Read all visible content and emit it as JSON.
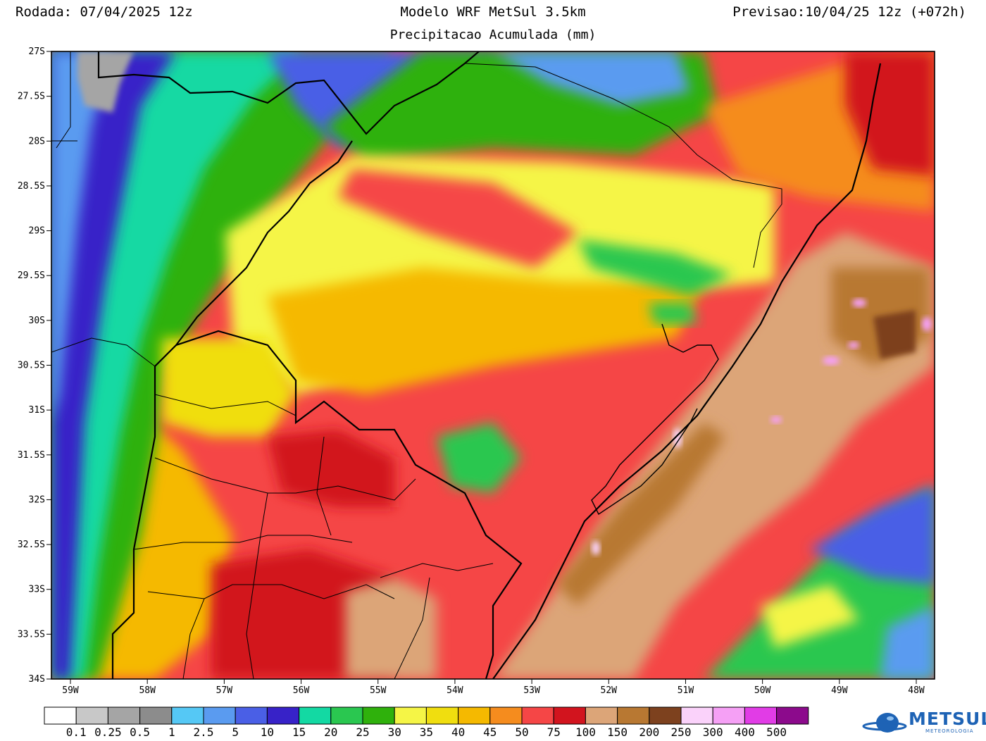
{
  "header": {
    "run": "Rodada: 07/04/2025 12z",
    "model": "Modelo WRF MetSul 3.5km",
    "forecast": "Previsao:10/04/25 12z (+072h)",
    "subtitle": "Precipitacao Acumulada (mm)"
  },
  "axes": {
    "lat_labels": [
      "27S",
      "27.5S",
      "28S",
      "28.5S",
      "29S",
      "29.5S",
      "30S",
      "30.5S",
      "31S",
      "31.5S",
      "32S",
      "32.5S",
      "33S",
      "33.5S",
      "34S"
    ],
    "lon_labels": [
      "59W",
      "58W",
      "57W",
      "56W",
      "55W",
      "54W",
      "53W",
      "52W",
      "51W",
      "50W",
      "49W",
      "48W"
    ]
  },
  "colorbar": {
    "labels": [
      "0.1",
      "0.25",
      "0.5",
      "1",
      "2.5",
      "5",
      "10",
      "15",
      "20",
      "25",
      "30",
      "35",
      "40",
      "45",
      "50",
      "75",
      "100",
      "150",
      "200",
      "250",
      "300",
      "400",
      "500"
    ],
    "colors": [
      "#ffffff",
      "#c8c8c8",
      "#a5a5a5",
      "#8c8c8c",
      "#55c8f5",
      "#5a9bf0",
      "#4a5fe6",
      "#3722c8",
      "#13d9a3",
      "#2ac750",
      "#2fb10c",
      "#f5f546",
      "#f0de0f",
      "#f5b900",
      "#f58c1e",
      "#f54646",
      "#d2141e",
      "#dca578",
      "#b87832",
      "#7d411e",
      "#fad2fa",
      "#f5a0f5",
      "#e13ce6",
      "#8c0a8c"
    ]
  },
  "logo": {
    "name": "METSUL",
    "tagline": "METEOROLOGIA"
  },
  "colors": {
    "logo_blue": "#1e63b5"
  }
}
